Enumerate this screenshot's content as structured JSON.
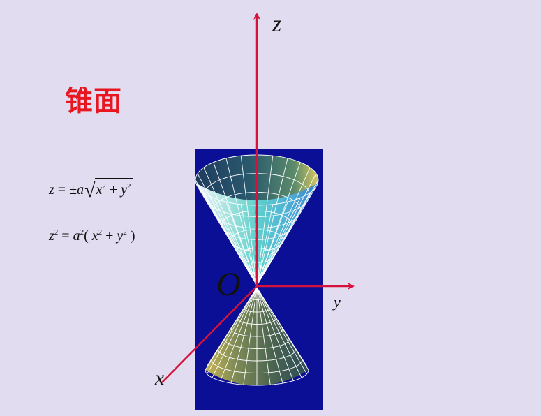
{
  "slide": {
    "title": "锥面",
    "formulas": {
      "f1": {
        "lhs": "z",
        "eq": " = ±",
        "a": "a",
        "x": "x",
        "exp": "2",
        "plus": " + ",
        "y": "y",
        "exp2": "2"
      },
      "f2": {
        "z": "z",
        "zexp": "2",
        "eq": " = ",
        "a": "a",
        "aexp": "2",
        "open": "( ",
        "x": "x",
        "xexp": "2",
        "plus": " + ",
        "y": "y",
        "yexp": "2",
        "close": " )"
      }
    },
    "axes": {
      "z": "z",
      "y": "y",
      "x": "x",
      "origin": "O"
    },
    "colors": {
      "background": "#e1dcf0",
      "title": "#e8161f",
      "panel": "#0b0f96",
      "axis": "#d6123c",
      "mesh": "#ffffff"
    }
  }
}
